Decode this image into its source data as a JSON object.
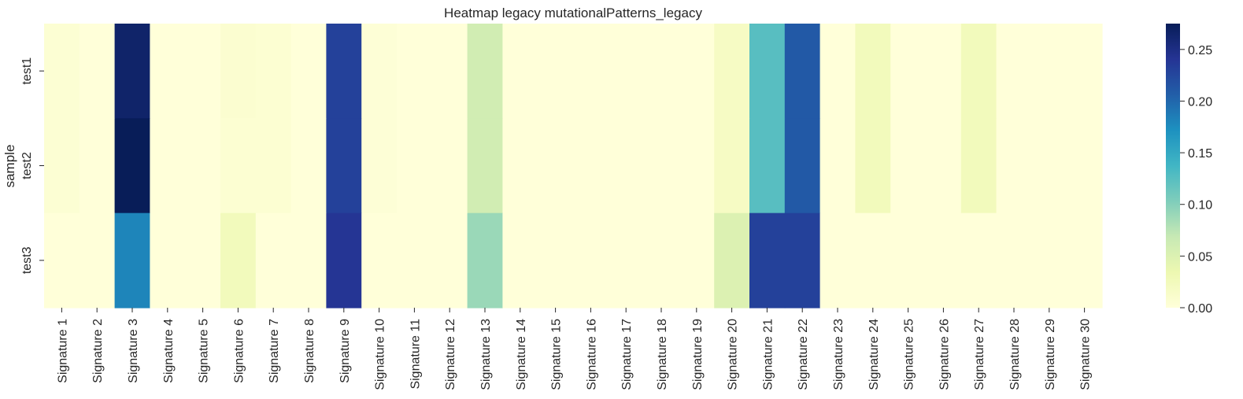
{
  "chart_data": {
    "type": "heatmap",
    "title": "Heatmap legacy mutationalPatterns_legacy",
    "xlabel": "",
    "ylabel": "sample",
    "columns": [
      "Signature 1",
      "Signature 2",
      "Signature 3",
      "Signature 4",
      "Signature 5",
      "Signature 6",
      "Signature 7",
      "Signature 8",
      "Signature 9",
      "Signature 10",
      "Signature 11",
      "Signature 12",
      "Signature 13",
      "Signature 14",
      "Signature 15",
      "Signature 16",
      "Signature 17",
      "Signature 18",
      "Signature 19",
      "Signature 20",
      "Signature 21",
      "Signature 22",
      "Signature 23",
      "Signature 24",
      "Signature 25",
      "Signature 26",
      "Signature 27",
      "Signature 28",
      "Signature 29",
      "Signature 30"
    ],
    "rows": [
      "test1",
      "test2",
      "test3"
    ],
    "values": [
      [
        0.005,
        0.0,
        0.265,
        0.0,
        0.0,
        0.008,
        0.006,
        0.0,
        0.23,
        0.003,
        0.0,
        0.0,
        0.06,
        0.0,
        0.0,
        0.0,
        0.0,
        0.0,
        0.0,
        0.018,
        0.125,
        0.21,
        0.0,
        0.025,
        0.0,
        0.0,
        0.025,
        0.0,
        0.0,
        0.0
      ],
      [
        0.005,
        0.0,
        0.275,
        0.0,
        0.0,
        0.006,
        0.006,
        0.0,
        0.23,
        0.003,
        0.0,
        0.0,
        0.06,
        0.0,
        0.0,
        0.0,
        0.0,
        0.0,
        0.0,
        0.018,
        0.125,
        0.21,
        0.0,
        0.025,
        0.0,
        0.0,
        0.025,
        0.0,
        0.0,
        0.0
      ],
      [
        0.0,
        0.0,
        0.18,
        0.0,
        0.0,
        0.025,
        0.0,
        0.0,
        0.24,
        0.0,
        0.0,
        0.0,
        0.09,
        0.0,
        0.0,
        0.0,
        0.0,
        0.0,
        0.0,
        0.05,
        0.23,
        0.23,
        0.0,
        0.0,
        0.0,
        0.0,
        0.0,
        0.0,
        0.0,
        0.0
      ]
    ],
    "colormap": "YlGnBu",
    "vmin": 0.0,
    "vmax": 0.275,
    "colorbar_ticks": [
      {
        "value": 0.0,
        "label": "0.00"
      },
      {
        "value": 0.05,
        "label": "0.05"
      },
      {
        "value": 0.1,
        "label": "0.10"
      },
      {
        "value": 0.15,
        "label": "0.15"
      },
      {
        "value": 0.2,
        "label": "0.20"
      },
      {
        "value": 0.25,
        "label": "0.25"
      }
    ]
  }
}
